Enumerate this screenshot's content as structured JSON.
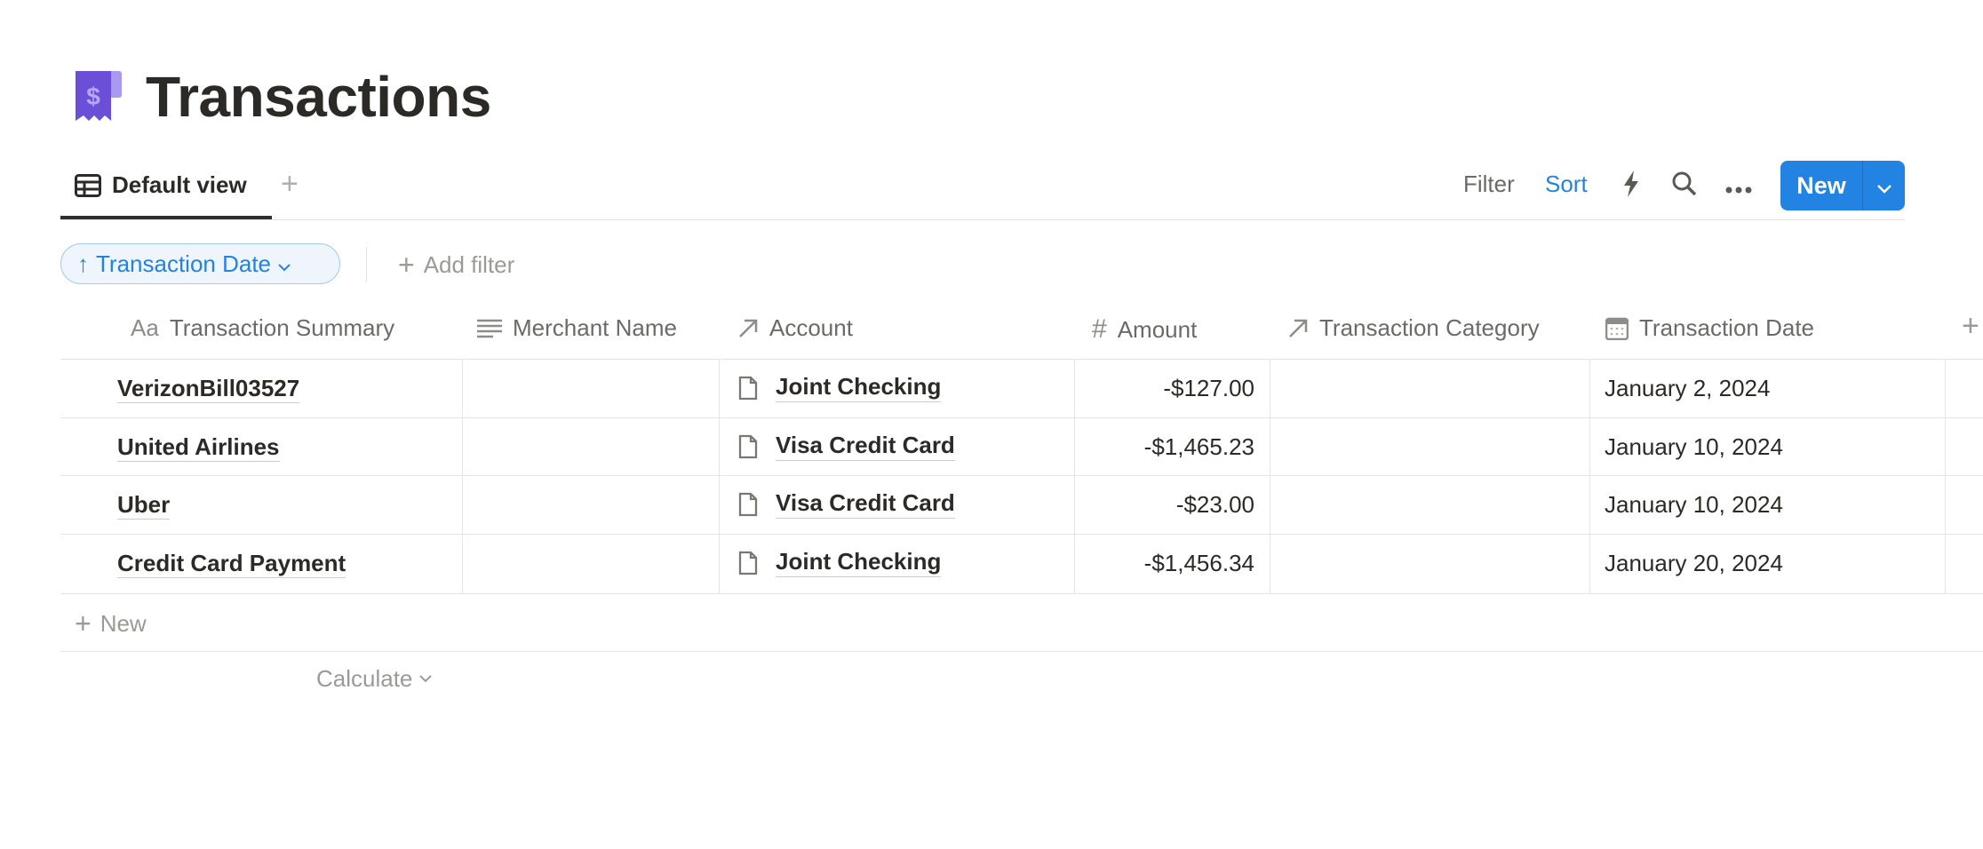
{
  "page": {
    "title": "Transactions",
    "icon": "receipt-dollar-icon",
    "accent": "#6b4fd8"
  },
  "views": {
    "tabs": [
      {
        "label": "Default view",
        "icon": "table-icon"
      }
    ],
    "add_view": "+"
  },
  "toolbar": {
    "filter": "Filter",
    "sort": "Sort",
    "new": "New"
  },
  "sort_chip": {
    "label": "Transaction Date",
    "direction": "ascending"
  },
  "add_filter": "Add filter",
  "columns": [
    {
      "label": "Transaction Summary",
      "icon": "Aa"
    },
    {
      "label": "Merchant Name",
      "icon": "text-lines-icon"
    },
    {
      "label": "Account",
      "icon": "relation-arrow-icon"
    },
    {
      "label": "Amount",
      "icon": "#"
    },
    {
      "label": "Transaction Category",
      "icon": "relation-arrow-icon"
    },
    {
      "label": "Transaction Date",
      "icon": "calendar-icon"
    }
  ],
  "rows": [
    {
      "summary": "VerizonBill03527",
      "merchant": "",
      "account": "Joint Checking",
      "amount": "-$127.00",
      "category": "",
      "date": "January 2, 2024"
    },
    {
      "summary": "United Airlines",
      "merchant": "",
      "account": "Visa Credit Card",
      "amount": "-$1,465.23",
      "category": "",
      "date": "January 10, 2024"
    },
    {
      "summary": "Uber",
      "merchant": "",
      "account": "Visa Credit Card",
      "amount": "-$23.00",
      "category": "",
      "date": "January 10, 2024"
    },
    {
      "summary": "Credit Card Payment",
      "merchant": "",
      "account": "Joint Checking",
      "amount": "-$1,456.34",
      "category": "",
      "date": "January 20, 2024"
    }
  ],
  "footer": {
    "new_row": "New",
    "calculate": "Calculate"
  },
  "colors": {
    "primary": "#2383e2",
    "text": "#37352f",
    "muted": "#9b9a97"
  }
}
